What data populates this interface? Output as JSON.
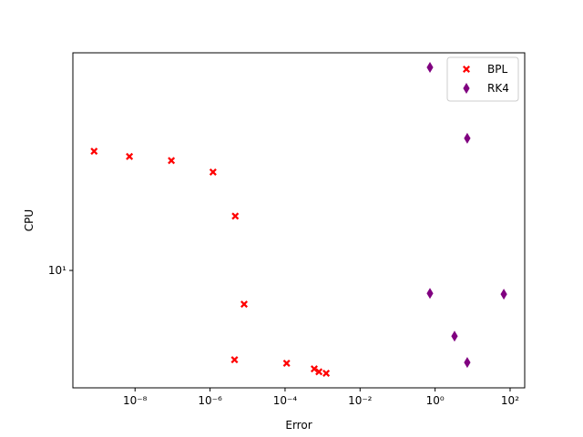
{
  "chart_data": {
    "type": "scatter",
    "xlabel": "Error",
    "ylabel": "CPU",
    "xscale": "log",
    "yscale": "log",
    "xlim": [
      2.2e-10,
      245
    ],
    "ylim": [
      4.48,
      44.3
    ],
    "xticks": [
      {
        "value": 1e-08,
        "label": "10⁻⁸"
      },
      {
        "value": 1e-06,
        "label": "10⁻⁶"
      },
      {
        "value": 0.0001,
        "label": "10⁻⁴"
      },
      {
        "value": 0.01,
        "label": "10⁻²"
      },
      {
        "value": 1,
        "label": "10⁰"
      },
      {
        "value": 100,
        "label": "10²"
      }
    ],
    "yticks": [
      {
        "value": 10,
        "label": "10¹"
      }
    ],
    "legend": "upper right",
    "series": [
      {
        "name": "BPL",
        "color": "#ff0000",
        "marker": "X",
        "x": [
          8.1e-10,
          7.1e-09,
          9.3e-08,
          1.2e-06,
          4.7e-06,
          8.1e-06,
          4.5e-06,
          0.00011,
          0.0006,
          0.0008,
          0.00125
        ],
        "values": [
          22.6,
          21.8,
          21.2,
          19.6,
          14.5,
          7.94,
          5.43,
          5.3,
          5.1,
          5.0,
          4.95
        ]
      },
      {
        "name": "RK4",
        "color": "#800080",
        "marker": "d",
        "x": [
          0.73,
          7.2,
          0.73,
          68,
          3.3,
          7.2
        ],
        "values": [
          40.1,
          24.7,
          8.55,
          8.5,
          6.38,
          5.33
        ]
      }
    ]
  }
}
